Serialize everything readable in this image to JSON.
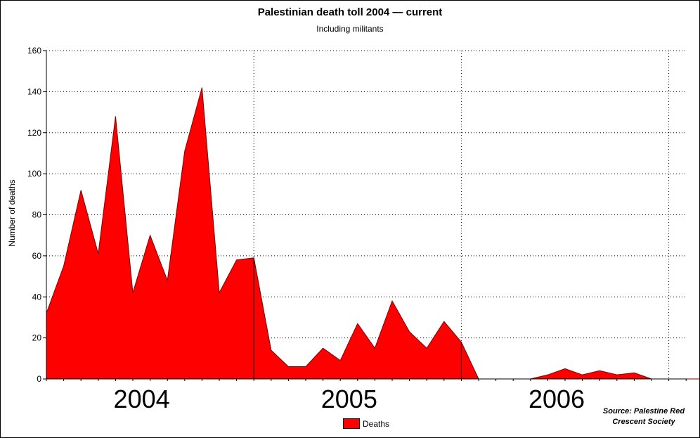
{
  "chart_data": {
    "type": "area",
    "title": "Palestinian death toll 2004 — current",
    "subtitle": "Including militants",
    "xlabel": "",
    "ylabel": "Number of deaths",
    "ylim": [
      0,
      160
    ],
    "y_ticks": [
      0,
      20,
      40,
      60,
      80,
      100,
      120,
      140,
      160
    ],
    "grid": true,
    "legend_placement": "bottom-center",
    "x_labels": [
      "2004",
      "2005",
      "2006"
    ],
    "series": [
      {
        "name": "Deaths",
        "color": "#ff0000",
        "values": [
          32,
          55,
          92,
          61,
          128,
          42,
          70,
          48,
          111,
          142,
          42,
          58,
          59,
          14,
          6,
          6,
          15,
          9,
          27,
          15,
          38,
          23,
          15,
          28,
          18,
          0,
          0,
          0,
          0,
          2,
          5,
          2,
          4,
          2,
          3,
          0,
          0,
          0,
          0
        ]
      }
    ],
    "source": "Source: Palestine Red Crescent Society"
  }
}
